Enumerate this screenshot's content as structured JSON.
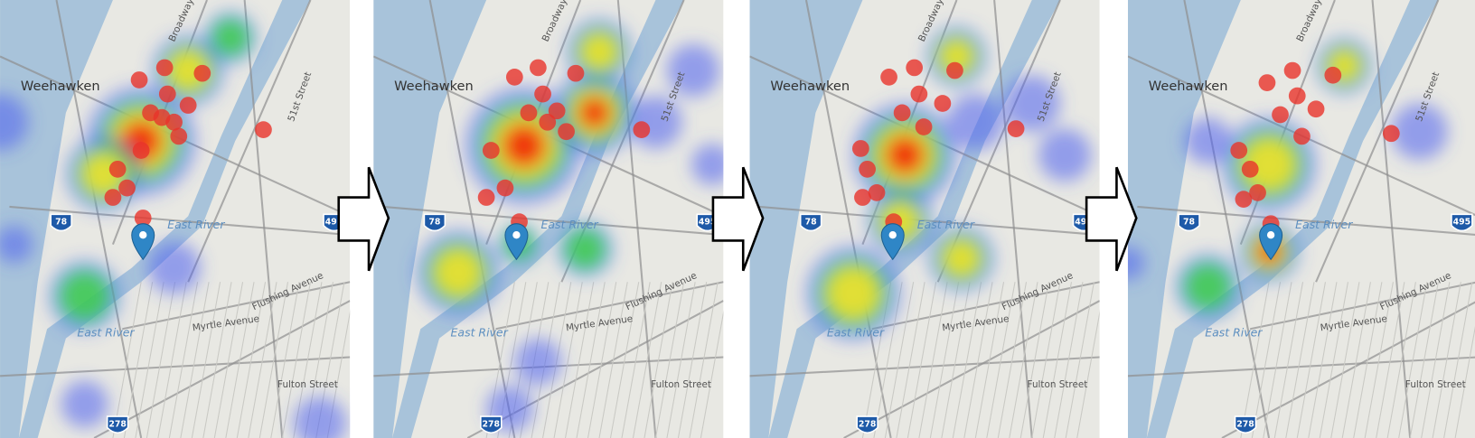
{
  "map_labels": [
    "Weehawken",
    "East River",
    "East River",
    "Myrtle Avenue",
    "Flushing Avenue",
    "Fulton Street",
    "51st Street",
    "Broadway",
    "78",
    "495",
    "278"
  ]
}
